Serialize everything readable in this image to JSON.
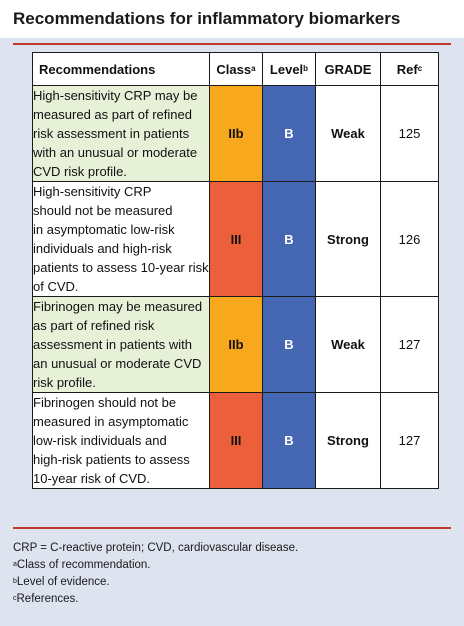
{
  "title": "Recommendations for inflammatory biomarkers",
  "table": {
    "headers": {
      "recommendations": "Recommendations",
      "class": "Class",
      "class_sup": "a",
      "level": "Level",
      "level_sup": "b",
      "grade": "GRADE",
      "ref": "Ref",
      "ref_sup": "c"
    },
    "rows": [
      {
        "lines": [
          "High-sensitivity CRP may be",
          "measured as part of refined",
          "risk assessment in patients",
          "with an unusual or moderate",
          "CVD risk profile."
        ],
        "class": "IIb",
        "level": "B",
        "grade": "Weak",
        "ref": "125"
      },
      {
        "lines": [
          "High-sensitivity CRP",
          "should not be measured",
          "in asymptomatic low-risk",
          "individuals and high-risk",
          "patients to assess 10-year risk",
          "of CVD."
        ],
        "class": "III",
        "level": "B",
        "grade": "Strong",
        "ref": "126"
      },
      {
        "lines": [
          "Fibrinogen may be measured",
          "as part of refined risk",
          "assessment in patients with",
          "an unusual or moderate CVD",
          "risk profile."
        ],
        "class": "IIb",
        "level": "B",
        "grade": "Weak",
        "ref": "127"
      },
      {
        "lines": [
          "Fibrinogen should not be",
          "measured in asymptomatic",
          "low-risk individuals and",
          "high-risk patients to assess",
          "10-year risk of CVD."
        ],
        "class": "III",
        "level": "B",
        "grade": "Strong",
        "ref": "127"
      }
    ]
  },
  "colors": {
    "class_IIb": "#f7a81d",
    "class_III": "#ec5f3b",
    "level_B": "#4566b3",
    "accent_rule": "#c0392b",
    "row_highlight": "#e6f1d8"
  },
  "footnotes": {
    "abbrev": "CRP = C-reactive protein; CVD, cardiovascular disease.",
    "a_sup": "a",
    "a_text": "Class of recommendation.",
    "b_sup": "b",
    "b_text": "Level of evidence.",
    "c_sup": "c",
    "c_text": "References."
  }
}
